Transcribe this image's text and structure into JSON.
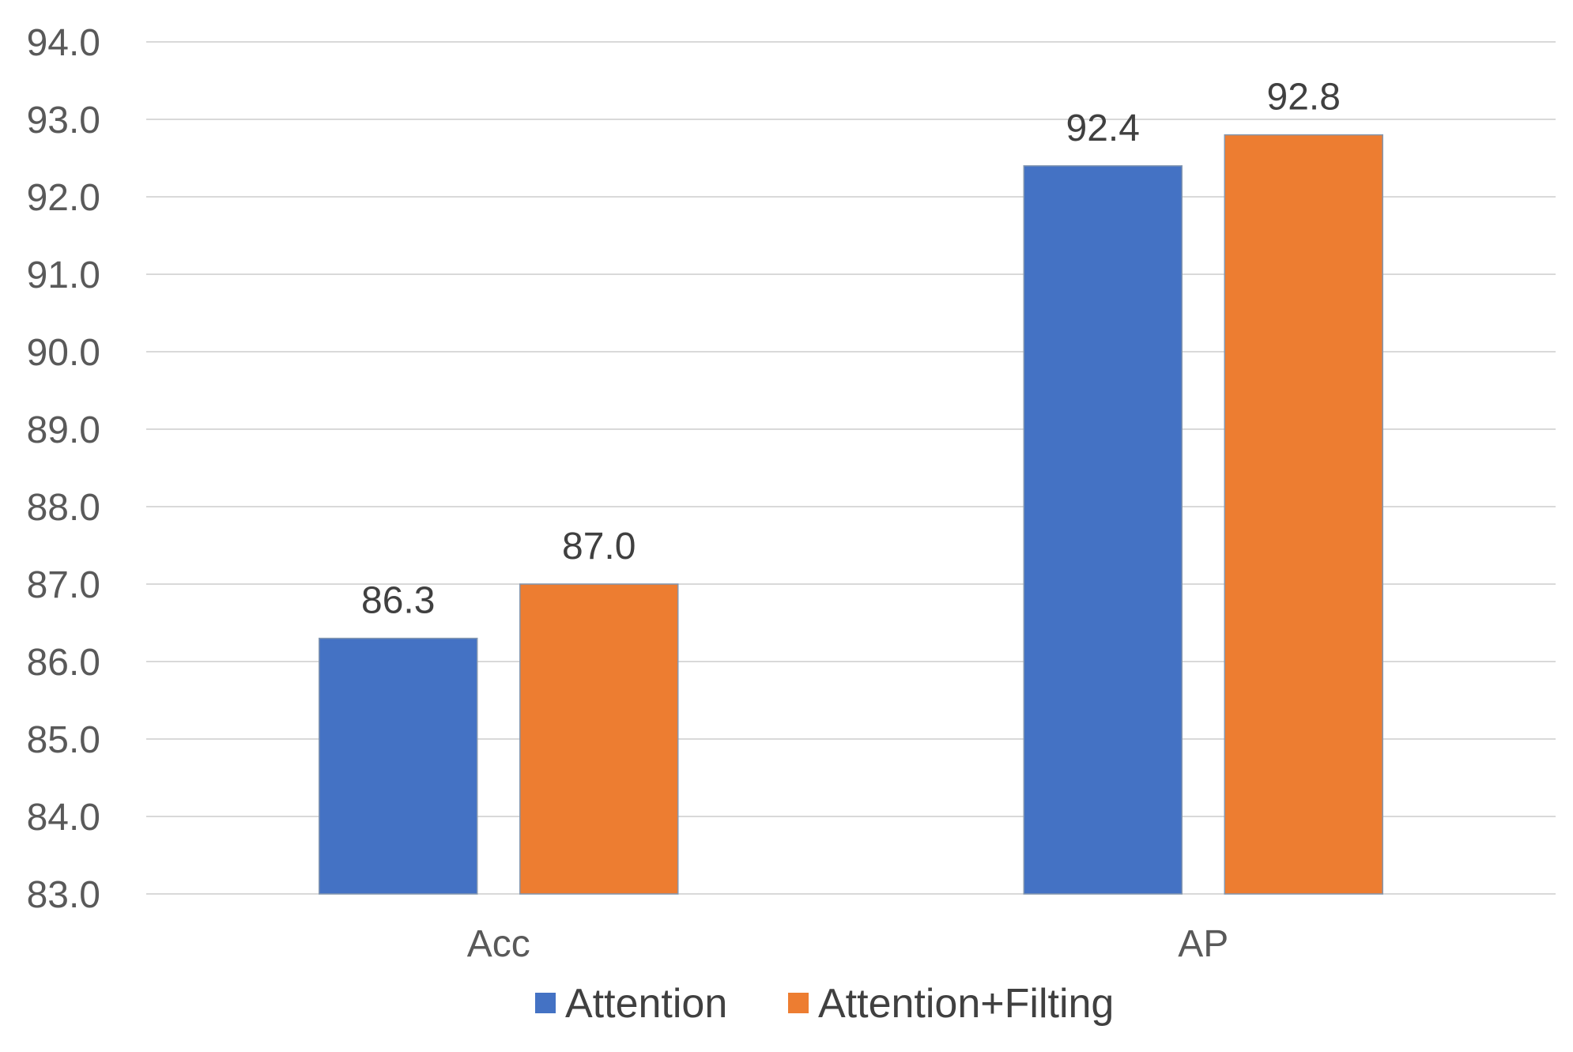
{
  "chart_data": {
    "type": "bar",
    "title": "",
    "xlabel": "",
    "ylabel": "",
    "categories": [
      "Acc",
      "AP"
    ],
    "series": [
      {
        "name": "Attention",
        "values": [
          86.3,
          92.4
        ],
        "color": "#4472C4",
        "labels": [
          "86.3",
          "92.4"
        ]
      },
      {
        "name": "Attention+Filting",
        "values": [
          87.0,
          92.8
        ],
        "color": "#ED7D31",
        "labels": [
          "87.0",
          "92.8"
        ]
      }
    ],
    "ylim": [
      83.0,
      94.0
    ],
    "yticks": [
      "83.0",
      "84.0",
      "85.0",
      "86.0",
      "87.0",
      "88.0",
      "89.0",
      "90.0",
      "91.0",
      "92.0",
      "93.0",
      "94.0"
    ],
    "grid": true,
    "legend_position": "bottom"
  }
}
